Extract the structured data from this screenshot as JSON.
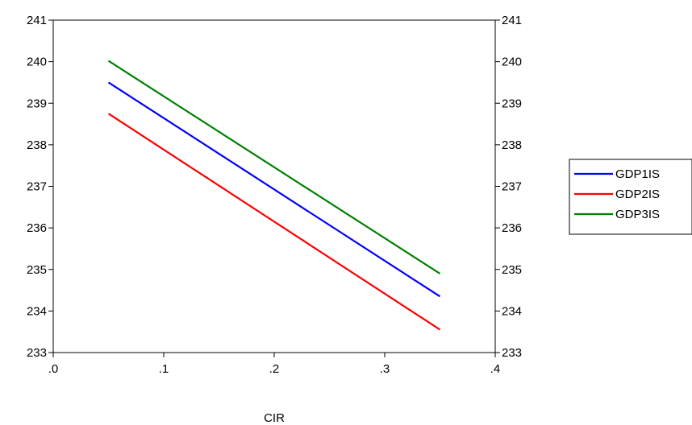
{
  "chart_data": {
    "type": "line",
    "title": "",
    "xlabel": "CIR",
    "ylabel": "",
    "xlim": [
      0.0,
      0.4
    ],
    "ylim": [
      233,
      241
    ],
    "x_ticks": [
      ".0",
      ".1",
      ".2",
      ".3",
      ".4"
    ],
    "y_ticks": [
      "233",
      "234",
      "235",
      "236",
      "237",
      "238",
      "239",
      "240",
      "241"
    ],
    "grid": false,
    "legend_position": "right",
    "series": [
      {
        "name": "GDP1IS",
        "color": "#0000ff",
        "x": [
          0.05,
          0.35
        ],
        "y": [
          239.5,
          234.35
        ]
      },
      {
        "name": "GDP2IS",
        "color": "#ff0000",
        "x": [
          0.05,
          0.35
        ],
        "y": [
          238.75,
          233.55
        ]
      },
      {
        "name": "GDP3IS",
        "color": "#008000",
        "x": [
          0.05,
          0.35
        ],
        "y": [
          240.02,
          234.9
        ]
      }
    ]
  }
}
